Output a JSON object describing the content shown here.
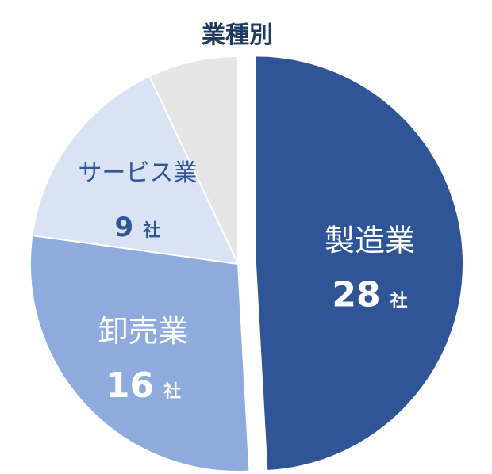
{
  "chart_data": {
    "type": "pie",
    "title": "業種別",
    "categories": [
      "製造業",
      "卸売業",
      "サービス業",
      ""
    ],
    "values": [
      28,
      16,
      9,
      4
    ],
    "unit": "社",
    "colors": [
      "#2f5597",
      "#8faadc",
      "#dae3f3",
      "#e7e6e6"
    ],
    "label_colors": [
      "#ffffff",
      "#ffffff",
      "#2f5597",
      ""
    ],
    "exploded": "製造業"
  }
}
